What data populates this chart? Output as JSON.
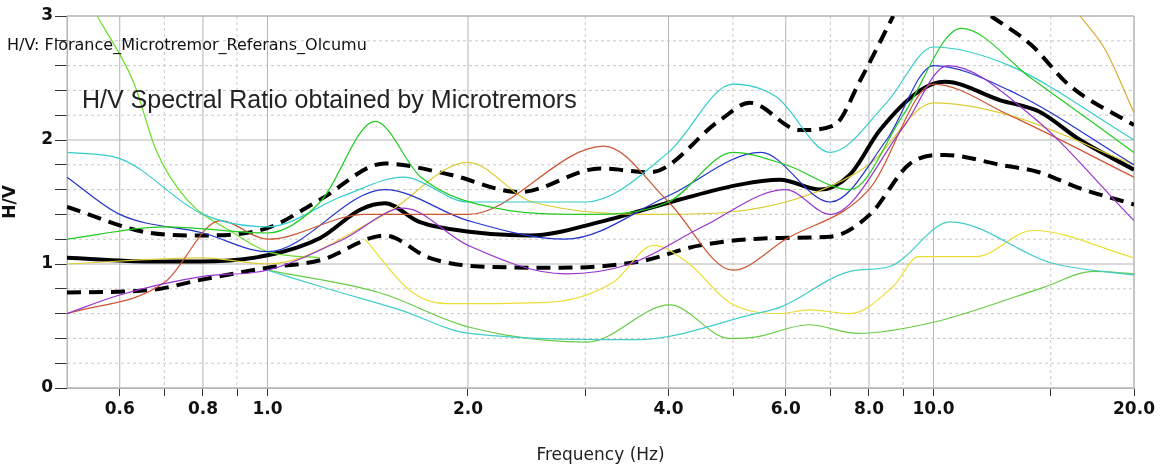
{
  "chart_data": {
    "type": "line",
    "title": "H/V: Florance_Microtremor_Referans_Olcumu",
    "annotations": [
      "H/V Spectral Ratio obtained by Microtremors"
    ],
    "xlabel": "Frequency (Hz)",
    "ylabel": "H/V",
    "log": "x",
    "xlim": [
      0.5,
      20
    ],
    "xticks": [
      0.6,
      {
        "value": 0.7,
        "label": null
      },
      0.8,
      {
        "value": 0.9,
        "label": null
      },
      {
        "value": 1,
        "label": "1.0"
      },
      {
        "value": 2,
        "label": "2.0"
      },
      {
        "value": 3,
        "label": null
      },
      {
        "value": 4,
        "label": "4.0"
      },
      {
        "value": 5,
        "label": null
      },
      {
        "value": 6,
        "label": "6.0"
      },
      {
        "value": 7,
        "label": null
      },
      {
        "value": 8,
        "label": "8.0"
      },
      {
        "value": 9,
        "label": null
      },
      {
        "value": 10,
        "label": "10.0"
      },
      {
        "value": 15,
        "label": null
      },
      {
        "value": 20,
        "label": "20.0"
      }
    ],
    "ylim": [
      0,
      3
    ],
    "yticks": [
      0,
      {
        "value": 0.2,
        "label": null
      },
      {
        "value": 0.4,
        "label": null
      },
      {
        "value": 0.6,
        "label": null
      },
      {
        "value": 0.8,
        "label": null
      },
      1,
      {
        "value": 1.2,
        "label": null
      },
      {
        "value": 1.4,
        "label": null
      },
      {
        "value": 1.6,
        "label": null
      },
      {
        "value": 1.8,
        "label": null
      },
      2,
      {
        "value": 2.2,
        "label": null
      },
      {
        "value": 2.4,
        "label": null
      },
      {
        "value": 2.6,
        "label": null
      },
      {
        "value": 2.8,
        "label": null
      },
      3
    ],
    "grid": true,
    "legend": false,
    "marker": "none",
    "series": [
      {
        "color": "#22cc22",
        "x": [
          0.5,
          0.7,
          1.0,
          1.2,
          1.45,
          1.7,
          2.2,
          3,
          4,
          5,
          6,
          7.5,
          9,
          11,
          14,
          20
        ],
        "values": [
          1.2,
          1.3,
          1.25,
          1.5,
          2.15,
          1.7,
          1.45,
          1.4,
          1.5,
          1.9,
          1.8,
          1.6,
          2.2,
          2.9,
          2.5,
          1.9
        ]
      },
      {
        "color": "#33cccc",
        "x": [
          0.5,
          0.6,
          0.8,
          1.0,
          1.3,
          1.6,
          2,
          3,
          4,
          5,
          5.8,
          7,
          8.5,
          10,
          13,
          20
        ],
        "values": [
          1.9,
          1.85,
          1.4,
          1.3,
          1.55,
          1.7,
          1.5,
          1.5,
          1.9,
          2.45,
          2.35,
          1.9,
          2.3,
          2.75,
          2.6,
          2.0
        ]
      },
      {
        "color": "#9933cc",
        "x": [
          0.5,
          0.6,
          0.8,
          1.0,
          1.3,
          1.6,
          2,
          2.8,
          3.5,
          4.5,
          6,
          7,
          9,
          10.5,
          14,
          20
        ],
        "values": [
          0.6,
          0.75,
          0.9,
          0.95,
          1.2,
          1.45,
          1.15,
          0.92,
          1.0,
          1.3,
          1.6,
          1.4,
          2.1,
          2.6,
          2.2,
          1.35
        ]
      },
      {
        "color": "#cc5533",
        "x": [
          0.5,
          0.7,
          0.85,
          1.0,
          1.4,
          2,
          3.2,
          4,
          5,
          6,
          8,
          10,
          13,
          20
        ],
        "values": [
          0.6,
          0.85,
          1.35,
          1.2,
          1.4,
          1.4,
          1.95,
          1.5,
          0.95,
          1.2,
          1.6,
          2.45,
          2.2,
          1.7
        ]
      },
      {
        "color": "#2233cc",
        "x": [
          0.5,
          0.6,
          0.8,
          1.0,
          1.5,
          2,
          2.8,
          4,
          5.5,
          7,
          8.5,
          10,
          13,
          20
        ],
        "values": [
          1.7,
          1.4,
          1.25,
          1.1,
          1.6,
          1.35,
          1.2,
          1.55,
          1.9,
          1.5,
          2.0,
          2.6,
          2.4,
          1.8
        ]
      },
      {
        "color": "#ddcc33",
        "x": [
          0.5,
          0.8,
          1.0,
          1.5,
          2.0,
          2.5,
          4,
          6,
          8,
          10,
          13,
          20
        ],
        "values": [
          1.0,
          1.05,
          1.0,
          1.4,
          1.82,
          1.5,
          1.4,
          1.5,
          1.8,
          2.3,
          2.2,
          1.8
        ]
      },
      {
        "color": "#66dd22",
        "x": [
          0.555,
          0.63,
          0.68,
          0.757,
          0.89,
          1.0,
          1.2
        ],
        "values": [
          3.0,
          2.46,
          1.92,
          1.52,
          1.25,
          1.1,
          1.05
        ]
      },
      {
        "color": "#ddaa33",
        "x": [
          16.6,
          18.1,
          20
        ],
        "values": [
          3.0,
          2.73,
          2.22
        ]
      },
      {
        "color": "#44cccc",
        "x": [
          1.0,
          1.25,
          1.58,
          2.01,
          3.59,
          5.4,
          5.88,
          7.5,
          8.6,
          10.6,
          15,
          20
        ],
        "values": [
          0.95,
          0.79,
          0.63,
          0.44,
          0.39,
          0.6,
          0.65,
          0.94,
          0.98,
          1.34,
          1.01,
          0.91
        ]
      },
      {
        "color": "#eedd33",
        "x": [
          1.4,
          1.65,
          1.86,
          2.63,
          3.3,
          3.8,
          4.3,
          4.94,
          5.88,
          6.5,
          7.5,
          8.7,
          9.5,
          11.6,
          14.1,
          20
        ],
        "values": [
          1.2,
          0.77,
          0.68,
          0.69,
          0.85,
          1.15,
          1.0,
          0.69,
          0.6,
          0.63,
          0.6,
          0.82,
          1.06,
          1.06,
          1.27,
          1.05
        ]
      },
      {
        "color": "#66cc44",
        "x": [
          1.0,
          1.47,
          2.01,
          3.02,
          4.02,
          4.94,
          5.4,
          6.5,
          7.7,
          10,
          14.6,
          17.4,
          20
        ],
        "values": [
          0.95,
          0.77,
          0.49,
          0.37,
          0.67,
          0.4,
          0.41,
          0.51,
          0.44,
          0.53,
          0.81,
          0.94,
          0.92
        ]
      },
      {
        "color": "#000000",
        "line_style": "dashed",
        "x": [
          0.5,
          0.667,
          0.79,
          1.0,
          1.2,
          1.5,
          1.88,
          2.39,
          3.16,
          3.75,
          4.78,
          5.3,
          6.3,
          7.1,
          7.76,
          8.7,
          10.5,
          12.2,
          14.0,
          16.0,
          20
        ],
        "values": [
          1.46,
          1.25,
          1.23,
          1.29,
          1.52,
          1.81,
          1.72,
          1.58,
          1.77,
          1.74,
          2.16,
          2.3,
          2.08,
          2.12,
          2.48,
          3.0,
          null,
          3.0,
          2.77,
          2.44,
          2.12
        ]
      },
      {
        "color": "#000000",
        "line_style": "dashed",
        "x": [
          0.5,
          0.667,
          0.79,
          1.0,
          1.2,
          1.5,
          1.75,
          2.08,
          2.75,
          3.62,
          4.46,
          5.88,
          7.0,
          8.03,
          9.22,
          10.4,
          12.6,
          14.4,
          16.6,
          20
        ],
        "values": [
          0.77,
          0.79,
          0.87,
          0.97,
          1.03,
          1.23,
          1.05,
          0.98,
          0.97,
          1.02,
          1.15,
          1.21,
          1.22,
          1.4,
          1.81,
          1.88,
          1.8,
          1.74,
          1.61,
          1.48
        ]
      },
      {
        "color": "#000000",
        "line_style": "solid",
        "x": [
          0.5,
          0.667,
          0.792,
          1.0,
          1.2,
          1.38,
          1.5,
          1.69,
          2.01,
          2.48,
          3.16,
          4.16,
          5.12,
          5.88,
          6.75,
          7.49,
          8.31,
          9.55,
          10.4,
          12.6,
          14.4,
          16.6,
          20
        ],
        "values": [
          1.05,
          1.02,
          1.02,
          1.07,
          1.21,
          1.44,
          1.49,
          1.34,
          1.26,
          1.23,
          1.34,
          1.52,
          1.64,
          1.68,
          1.6,
          1.72,
          2.08,
          2.4,
          2.47,
          2.32,
          2.23,
          2.0,
          1.76
        ]
      }
    ]
  }
}
